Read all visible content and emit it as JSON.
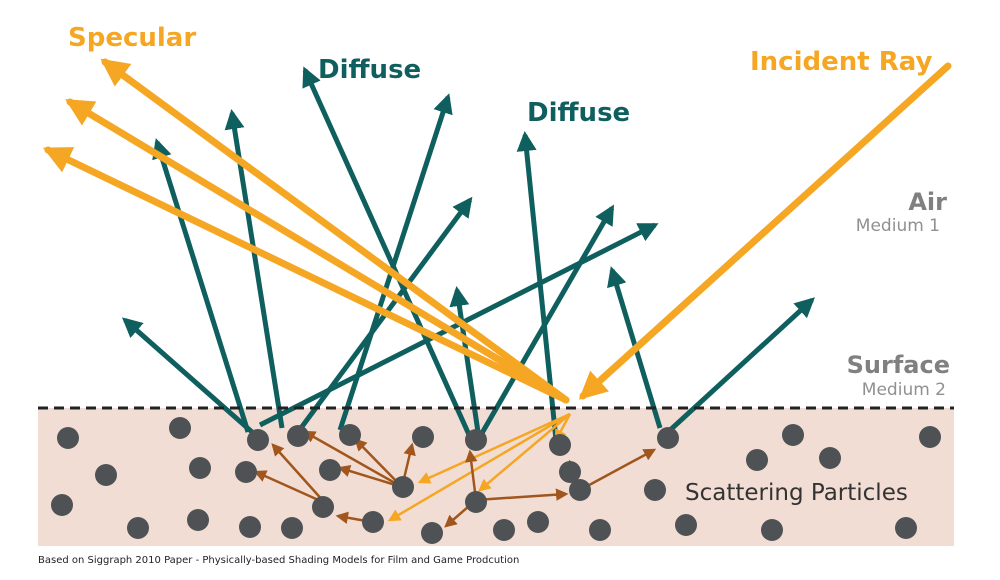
{
  "labels": {
    "specular": "Specular",
    "diffuse_1": "Diffuse",
    "diffuse_2": "Diffuse",
    "incident_ray": "Incident Ray",
    "air": "Air",
    "medium_1": "Medium 1",
    "surface": "Surface",
    "medium_2": "Medium 2",
    "scattering_particles": "Scattering Particles",
    "caption": "Based on Siggraph 2010 Paper - Physically-based Shading Models for Film and Game Prodcution"
  },
  "colors": {
    "specular_orange": "#f5a623",
    "diffuse_teal": "#0f5f5f",
    "scatter_brown": "#a0561c",
    "particle_gray": "#4f5255",
    "medium_fill": "#f2ddd5",
    "surface_line": "#222222"
  }
}
